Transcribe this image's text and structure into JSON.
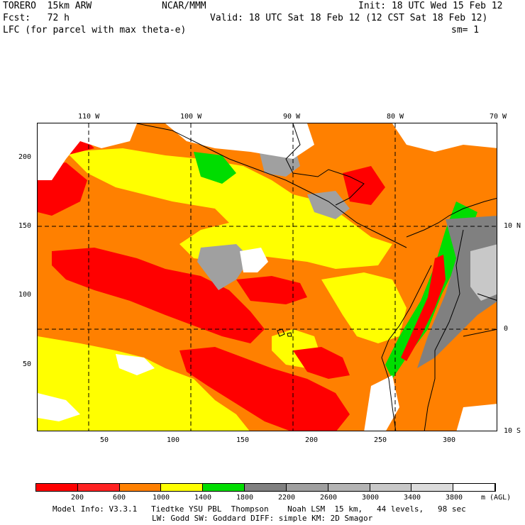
{
  "header": {
    "line1_left": "TORERO  15km ARW",
    "line1_mid": "NCAR/MMM",
    "line1_right": "Init: 18 UTC Wed 15 Feb 12",
    "line2_left": "Fcst:   72 h",
    "line2_right": "Valid: 18 UTC Sat 18 Feb 12 (12 CST Sat 18 Feb 12)",
    "line3_left": "LFC (for parcel with max theta-e)",
    "line3_right": "sm= 1"
  },
  "map": {
    "lon_labels": [
      "110 W",
      "100 W",
      "90 W",
      "80 W",
      "70 W"
    ],
    "lat_labels": [
      "10 N",
      "0",
      "10 S"
    ],
    "y_ticks": [
      "200",
      "150",
      "100",
      "50"
    ],
    "x_ticks": [
      "50",
      "100",
      "150",
      "200",
      "250",
      "300"
    ]
  },
  "legend": {
    "colors": [
      "#ff0000",
      "#ff2222",
      "#ff8000",
      "#ffff00",
      "#00dd00",
      "#808080",
      "#a0a0a0",
      "#b4b4b4",
      "#c8c8c8",
      "#dcdcdc",
      "#ffffff"
    ],
    "labels": [
      "200",
      "600",
      "1000",
      "1400",
      "1800",
      "2200",
      "2600",
      "3000",
      "3400",
      "3800"
    ],
    "units": "m (AGL)"
  },
  "footer": {
    "line1": "Model Info: V3.3.1   Tiedtke YSU PBL  Thompson    Noah LSM  15 km,   44 levels,   98 sec",
    "line2": "LW: Godd SW: Goddard DIFF: simple KM: 2D Smagor"
  }
}
